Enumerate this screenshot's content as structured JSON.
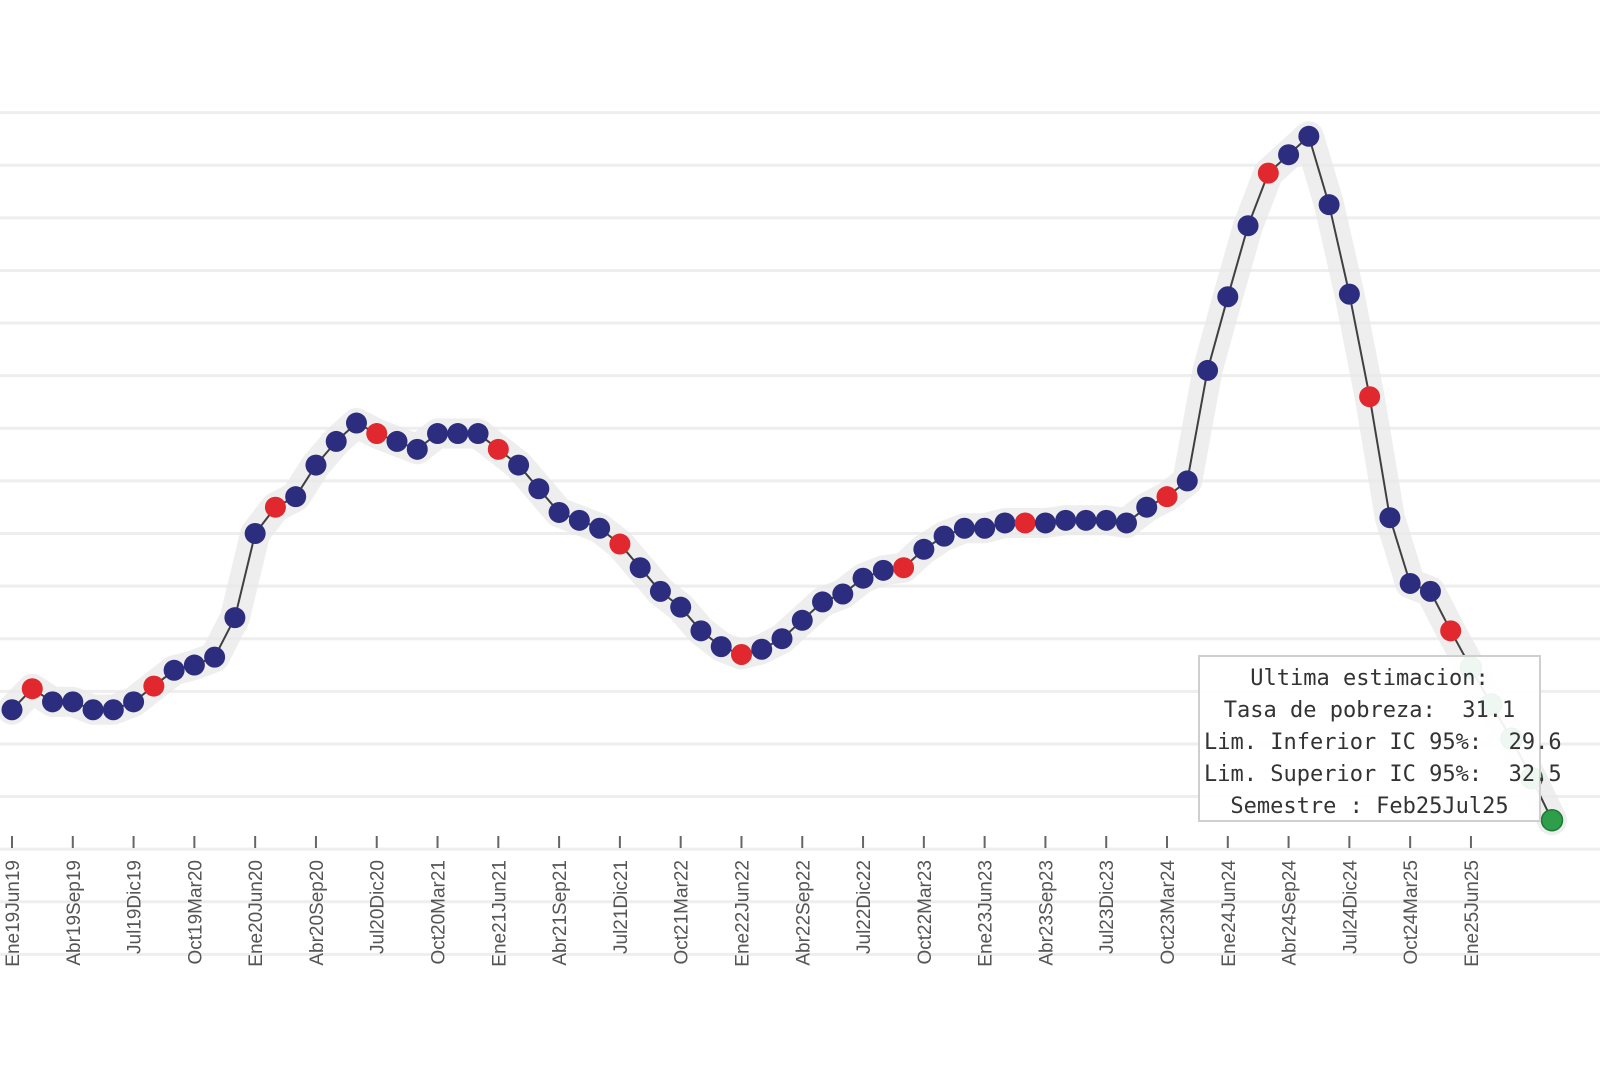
{
  "chart_data": {
    "type": "line",
    "title": "",
    "xlabel": "",
    "ylabel": "",
    "ylim": [
      24,
      60
    ],
    "grid": true,
    "colors": {
      "observed": "#2d2d7f",
      "highlight": "#e0282e",
      "estimate": "#2e9e4a",
      "line": "#404040",
      "band": "#e8e8e8",
      "gridline": "#eeeeee"
    },
    "tick_labels": [
      "Ene19Jun19",
      "Abr19Sep19",
      "Jul19Dic19",
      "Oct19Mar20",
      "Ene20Jun20",
      "Abr20Sep20",
      "Jul20Dic20",
      "Oct20Mar21",
      "Ene21Jun21",
      "Abr21Sep21",
      "Jul21Dic21",
      "Oct21Mar22",
      "Ene22Jun22",
      "Abr22Sep22",
      "Jul22Dic22",
      "Oct22Mar23",
      "Ene23Jun23",
      "Abr23Sep23",
      "Jul23Dic23",
      "Oct23Mar24",
      "Ene24Jun24",
      "Abr24Sep24",
      "Jul24Dic24",
      "Oct24Mar25",
      "Ene25Jun25"
    ],
    "series": [
      {
        "name": "Tasa de pobreza",
        "values": [
          35.3,
          36.1,
          35.6,
          35.6,
          35.3,
          35.3,
          35.6,
          36.2,
          36.8,
          37.0,
          37.3,
          38.8,
          42.0,
          43.0,
          43.4,
          44.6,
          45.5,
          46.2,
          45.8,
          45.5,
          45.2,
          45.8,
          45.8,
          45.8,
          45.2,
          44.6,
          43.7,
          42.8,
          42.5,
          42.2,
          41.6,
          40.7,
          39.8,
          39.2,
          38.3,
          37.7,
          37.4,
          37.6,
          38.0,
          38.7,
          39.4,
          39.7,
          40.3,
          40.6,
          40.7,
          41.4,
          41.9,
          42.2,
          42.2,
          42.4,
          42.4,
          42.4,
          42.5,
          42.5,
          42.5,
          42.4,
          43.0,
          43.4,
          44.0,
          48.2,
          51.0,
          53.7,
          55.7,
          56.4,
          57.1,
          54.5,
          51.1,
          47.2,
          42.6,
          40.1,
          39.8,
          38.3,
          36.9,
          35.5,
          34.2,
          32.7,
          31.1
        ],
        "markers": [
          "o",
          "r",
          "o",
          "o",
          "o",
          "o",
          "o",
          "r",
          "o",
          "o",
          "o",
          "o",
          "o",
          "r",
          "o",
          "o",
          "o",
          "o",
          "r",
          "o",
          "o",
          "o",
          "o",
          "o",
          "r",
          "o",
          "o",
          "o",
          "o",
          "o",
          "r",
          "o",
          "o",
          "o",
          "o",
          "o",
          "r",
          "o",
          "o",
          "o",
          "o",
          "o",
          "o",
          "o",
          "r",
          "o",
          "o",
          "o",
          "o",
          "o",
          "r",
          "o",
          "o",
          "o",
          "o",
          "o",
          "o",
          "r",
          "o",
          "o",
          "o",
          "o",
          "r",
          "o",
          "o",
          "o",
          "o",
          "r",
          "o",
          "o",
          "o",
          "r",
          "g",
          "g",
          "g",
          "g",
          "g"
        ]
      }
    ],
    "annotation": {
      "title": "Ultima estimacion:",
      "rows": [
        {
          "label": "Tasa de pobreza:",
          "value": "31.1"
        },
        {
          "label": "Lim. Inferior IC 95%:",
          "value": "29.6"
        },
        {
          "label": "Lim. Superior IC 95%:",
          "value": "32.5"
        },
        {
          "label": "Semestre :",
          "value": "Feb25Jul25"
        }
      ]
    }
  }
}
